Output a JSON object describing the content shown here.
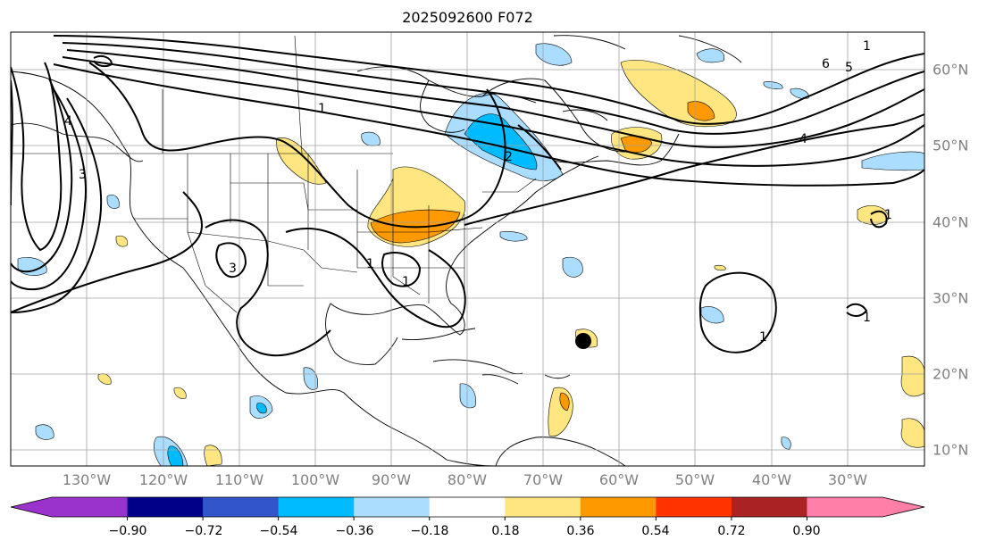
{
  "title": "2025092600 F072",
  "lon_labels": [
    "130°W",
    "120°W",
    "110°W",
    "100°W",
    "90°W",
    "80°W",
    "70°W",
    "60°W",
    "50°W",
    "40°W",
    "30°W"
  ],
  "lat_labels": [
    "60°N",
    "50°N",
    "40°N",
    "30°N",
    "20°N",
    "10°N"
  ],
  "colorbar": {
    "ticks": [
      "−0.90",
      "−0.72",
      "−0.54",
      "−0.36",
      "−0.18",
      "0.18",
      "0.36",
      "0.54",
      "0.72",
      "0.90"
    ],
    "colors": [
      "#9933cc",
      "#000088",
      "#3355cc",
      "#00bbff",
      "#aaddff",
      "#ffffff",
      "#ffe680",
      "#ff9900",
      "#ff3300",
      "#aa2222",
      "#ff7fa8"
    ],
    "extend_min_color": "#9933cc",
    "extend_max_color": "#ff7fa8"
  },
  "contour_labels": {
    "a": "1",
    "b": "3",
    "c": "4",
    "d": "6",
    "e": "5",
    "f": "1",
    "g": "1",
    "h": "1",
    "i": "1",
    "j": "1",
    "k": "3",
    "l": "1",
    "m": "4",
    "n": "2"
  }
}
